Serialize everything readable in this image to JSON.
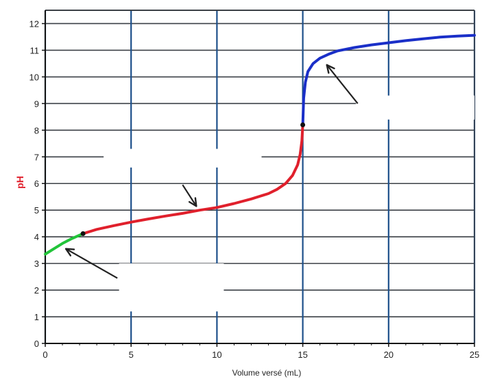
{
  "chart_data": {
    "type": "line",
    "title": "",
    "xlabel": "Volume versé (mL)",
    "ylabel": "pH",
    "xlim": [
      0,
      25
    ],
    "ylim": [
      0,
      12.5
    ],
    "x_ticks": [
      "0",
      "5",
      "10",
      "15",
      "20",
      "25"
    ],
    "y_ticks": [
      "0",
      "1",
      "2",
      "3",
      "4",
      "5",
      "6",
      "7",
      "8",
      "9",
      "10",
      "11",
      "12"
    ],
    "grid": true,
    "legend": "none",
    "series": [
      {
        "color": "#22c43a",
        "x": [
          0,
          0.5,
          1.0,
          1.5,
          2.2
        ],
        "y": [
          3.35,
          3.55,
          3.75,
          3.92,
          4.12
        ]
      },
      {
        "color": "#e0202c",
        "x": [
          2.2,
          3,
          4,
          5,
          6,
          7,
          8,
          9,
          10,
          11,
          12,
          13,
          13.5,
          14,
          14.4,
          14.7,
          14.85,
          14.95,
          15.0
        ],
        "y": [
          4.12,
          4.28,
          4.42,
          4.55,
          4.67,
          4.78,
          4.88,
          5.0,
          5.1,
          5.25,
          5.42,
          5.62,
          5.78,
          6.0,
          6.3,
          6.7,
          7.1,
          7.6,
          8.2
        ]
      },
      {
        "color": "#1a2fc8",
        "x": [
          15.0,
          15.05,
          15.15,
          15.3,
          15.6,
          16.0,
          16.5,
          17.0,
          18,
          19,
          20,
          21,
          22,
          23,
          24,
          25
        ],
        "y": [
          8.2,
          9.2,
          9.8,
          10.2,
          10.5,
          10.7,
          10.85,
          10.97,
          11.1,
          11.2,
          11.28,
          11.36,
          11.43,
          11.49,
          11.53,
          11.56
        ]
      }
    ],
    "points": [
      {
        "x": 2.2,
        "y": 4.12
      },
      {
        "x": 15.0,
        "y": 8.2
      }
    ],
    "arrows": [
      {
        "from": [
          4.2,
          2.45
        ],
        "to": [
          1.2,
          3.55
        ]
      },
      {
        "from": [
          8.0,
          5.95
        ],
        "to": [
          8.8,
          5.15
        ]
      },
      {
        "from": [
          18.2,
          9.0
        ],
        "to": [
          16.4,
          10.45
        ]
      }
    ],
    "blank_boxes": [
      {
        "x0": 3.4,
        "x1": 12.6,
        "y0": 6.6,
        "y1": 7.3
      },
      {
        "x0": 4.3,
        "x1": 10.4,
        "y0": 1.2,
        "y1": 3.0
      },
      {
        "x0": 18.1,
        "x1": 25.0,
        "y0": 8.4,
        "y1": 9.3
      }
    ]
  }
}
